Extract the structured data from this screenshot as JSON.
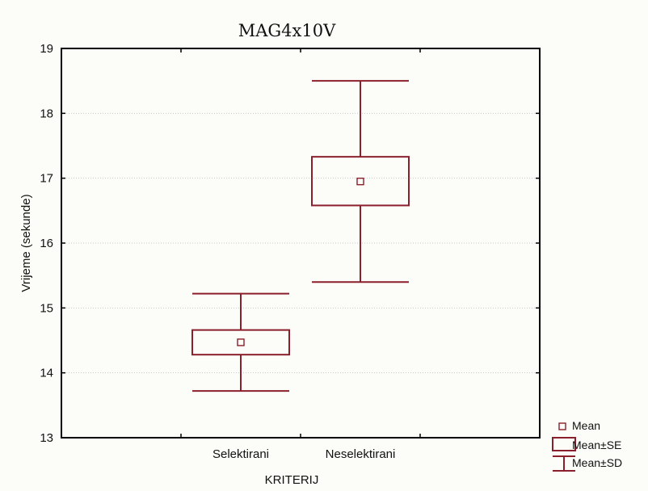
{
  "chart_data": {
    "type": "box",
    "title": "MAG4x10V",
    "xlabel": "KRITERIJ",
    "ylabel": "Vrijeme (sekunde)",
    "ylim": [
      13,
      19
    ],
    "y_ticks": [
      "13",
      "14",
      "15",
      "16",
      "17",
      "18",
      "19"
    ],
    "categories": [
      "Selektirani",
      "Neselektirani"
    ],
    "series": [
      {
        "mean": [
          14.47,
          16.95
        ],
        "se_low": [
          14.28,
          16.58
        ],
        "se_high": [
          14.66,
          17.33
        ],
        "sd_low": [
          13.72,
          15.4
        ],
        "sd_high": [
          15.22,
          18.5
        ]
      }
    ],
    "legend": {
      "position": "bottom-right",
      "items": [
        {
          "label": "Mean",
          "symbol": "square"
        },
        {
          "label": "Mean±SE",
          "symbol": "box"
        },
        {
          "label": "Mean±SD",
          "symbol": "whisker"
        }
      ]
    },
    "grid": true,
    "colors": {
      "mark": "#8b1f2b",
      "grid": "#c8c8c8",
      "axis": "#000000",
      "background": "#fcfcf8"
    }
  }
}
